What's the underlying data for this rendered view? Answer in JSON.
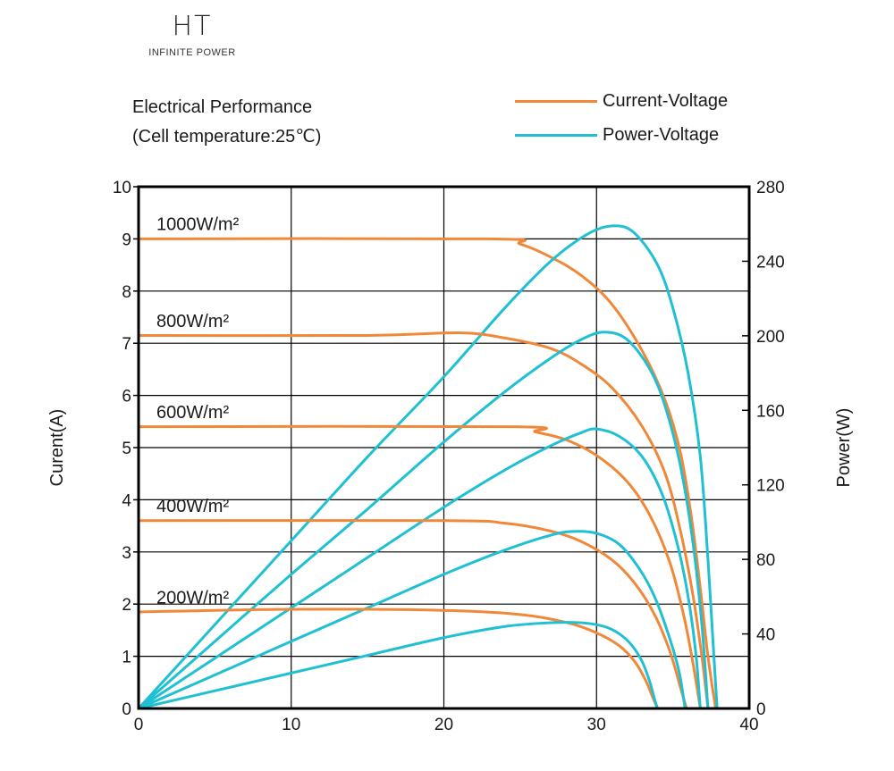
{
  "brand": {
    "mark": "HT",
    "tagline": "INFINITE POWER"
  },
  "chart_data": {
    "type": "line",
    "title": "",
    "subtitle_lines": [
      "Electrical Performance",
      "(Cell temperature:25℃)"
    ],
    "xlabel": "",
    "ylabel": "Curent(A)",
    "y2label": "Power(W)",
    "xlim": [
      0,
      40
    ],
    "ylim": [
      0,
      10
    ],
    "y2lim": [
      0,
      280
    ],
    "x_ticks": [
      0,
      10,
      20,
      30,
      40
    ],
    "y_ticks": [
      0,
      1,
      2,
      3,
      4,
      5,
      6,
      7,
      8,
      9,
      10
    ],
    "y2_ticks": [
      0,
      40,
      80,
      120,
      160,
      200,
      240,
      280
    ],
    "grid": true,
    "legend": {
      "position": "top-right",
      "entries": [
        {
          "name": "Current-Voltage",
          "color": "#f0883a"
        },
        {
          "name": "Power-Voltage",
          "color": "#1fc0d2"
        }
      ]
    },
    "colors": {
      "current": "#f0883a",
      "power": "#1fc0d2",
      "frame": "#000000",
      "grid": "#000000"
    },
    "irradiance_levels": [
      {
        "label": "1000W/m²",
        "label_y": 9.2,
        "iv": [
          [
            0,
            9.0
          ],
          [
            23,
            9.0
          ],
          [
            25,
            8.9
          ],
          [
            27,
            8.65
          ],
          [
            29,
            8.3
          ],
          [
            31,
            7.75
          ],
          [
            33,
            6.85
          ],
          [
            34.5,
            5.9
          ],
          [
            35.5,
            4.9
          ],
          [
            36.2,
            3.7
          ],
          [
            36.8,
            2.3
          ],
          [
            37.3,
            1.0
          ],
          [
            37.8,
            0
          ]
        ],
        "pv": [
          [
            0,
            0
          ],
          [
            5,
            45
          ],
          [
            10,
            90
          ],
          [
            15,
            135
          ],
          [
            20,
            178
          ],
          [
            24,
            215
          ],
          [
            27,
            240
          ],
          [
            29.5,
            255
          ],
          [
            31.2,
            259
          ],
          [
            32.5,
            255
          ],
          [
            34,
            238
          ],
          [
            35,
            215
          ],
          [
            36,
            180
          ],
          [
            36.8,
            135
          ],
          [
            37.3,
            80
          ],
          [
            37.6,
            40
          ],
          [
            37.9,
            0
          ]
        ]
      },
      {
        "label": "800W/m²",
        "label_y": 7.35,
        "iv": [
          [
            0,
            7.15
          ],
          [
            15,
            7.15
          ],
          [
            21,
            7.2
          ],
          [
            24,
            7.1
          ],
          [
            27,
            6.9
          ],
          [
            29,
            6.6
          ],
          [
            31,
            6.15
          ],
          [
            33,
            5.4
          ],
          [
            34.5,
            4.5
          ],
          [
            35.5,
            3.4
          ],
          [
            36.3,
            2.2
          ],
          [
            36.9,
            1.0
          ],
          [
            37.3,
            0
          ]
        ],
        "pv": [
          [
            0,
            0
          ],
          [
            5,
            36
          ],
          [
            10,
            72
          ],
          [
            15,
            107
          ],
          [
            20,
            143
          ],
          [
            24,
            170
          ],
          [
            27,
            188
          ],
          [
            29,
            198
          ],
          [
            30.5,
            202
          ],
          [
            32,
            198
          ],
          [
            33.5,
            182
          ],
          [
            34.5,
            162
          ],
          [
            35.5,
            130
          ],
          [
            36.3,
            90
          ],
          [
            36.9,
            45
          ],
          [
            37.3,
            0
          ]
        ]
      },
      {
        "label": "600W/m²",
        "label_y": 5.6,
        "iv": [
          [
            0,
            5.4
          ],
          [
            24.5,
            5.4
          ],
          [
            26,
            5.3
          ],
          [
            28,
            5.15
          ],
          [
            30,
            4.85
          ],
          [
            32,
            4.35
          ],
          [
            33.5,
            3.7
          ],
          [
            34.8,
            2.8
          ],
          [
            35.7,
            1.8
          ],
          [
            36.3,
            0.9
          ],
          [
            36.8,
            0
          ]
        ],
        "pv": [
          [
            0,
            0
          ],
          [
            5,
            27
          ],
          [
            10,
            54
          ],
          [
            15,
            81
          ],
          [
            20,
            108
          ],
          [
            24,
            128
          ],
          [
            27,
            141
          ],
          [
            29,
            148
          ],
          [
            30,
            150
          ],
          [
            31.5,
            146
          ],
          [
            33,
            135
          ],
          [
            34.3,
            115
          ],
          [
            35.3,
            88
          ],
          [
            36,
            60
          ],
          [
            36.5,
            30
          ],
          [
            36.8,
            0
          ]
        ]
      },
      {
        "label": "400W/m²",
        "label_y": 3.8,
        "iv": [
          [
            0,
            3.6
          ],
          [
            20,
            3.6
          ],
          [
            24,
            3.55
          ],
          [
            27,
            3.4
          ],
          [
            29,
            3.2
          ],
          [
            31,
            2.85
          ],
          [
            32.5,
            2.4
          ],
          [
            33.8,
            1.8
          ],
          [
            34.8,
            1.1
          ],
          [
            35.5,
            0.4
          ],
          [
            35.9,
            0
          ]
        ],
        "pv": [
          [
            0,
            0
          ],
          [
            5,
            18
          ],
          [
            10,
            36
          ],
          [
            15,
            54
          ],
          [
            20,
            72
          ],
          [
            24,
            85
          ],
          [
            27,
            93
          ],
          [
            28.5,
            95
          ],
          [
            30,
            94
          ],
          [
            31.5,
            88
          ],
          [
            32.8,
            75
          ],
          [
            33.8,
            60
          ],
          [
            34.7,
            40
          ],
          [
            35.4,
            20
          ],
          [
            35.8,
            0
          ]
        ]
      },
      {
        "label": "200W/m²",
        "label_y": 2.05,
        "iv": [
          [
            0,
            1.85
          ],
          [
            10,
            1.9
          ],
          [
            20,
            1.88
          ],
          [
            25,
            1.8
          ],
          [
            28,
            1.65
          ],
          [
            30,
            1.45
          ],
          [
            31.5,
            1.2
          ],
          [
            32.5,
            0.9
          ],
          [
            33.2,
            0.55
          ],
          [
            33.7,
            0.2
          ],
          [
            34,
            0
          ]
        ],
        "pv": [
          [
            0,
            0
          ],
          [
            5,
            9.5
          ],
          [
            10,
            19
          ],
          [
            15,
            28.5
          ],
          [
            20,
            38
          ],
          [
            24,
            44
          ],
          [
            27,
            46
          ],
          [
            29,
            46
          ],
          [
            30.5,
            44
          ],
          [
            31.5,
            40
          ],
          [
            32.3,
            34
          ],
          [
            33,
            25
          ],
          [
            33.5,
            14
          ],
          [
            33.8,
            5
          ],
          [
            34,
            0
          ]
        ]
      }
    ]
  }
}
